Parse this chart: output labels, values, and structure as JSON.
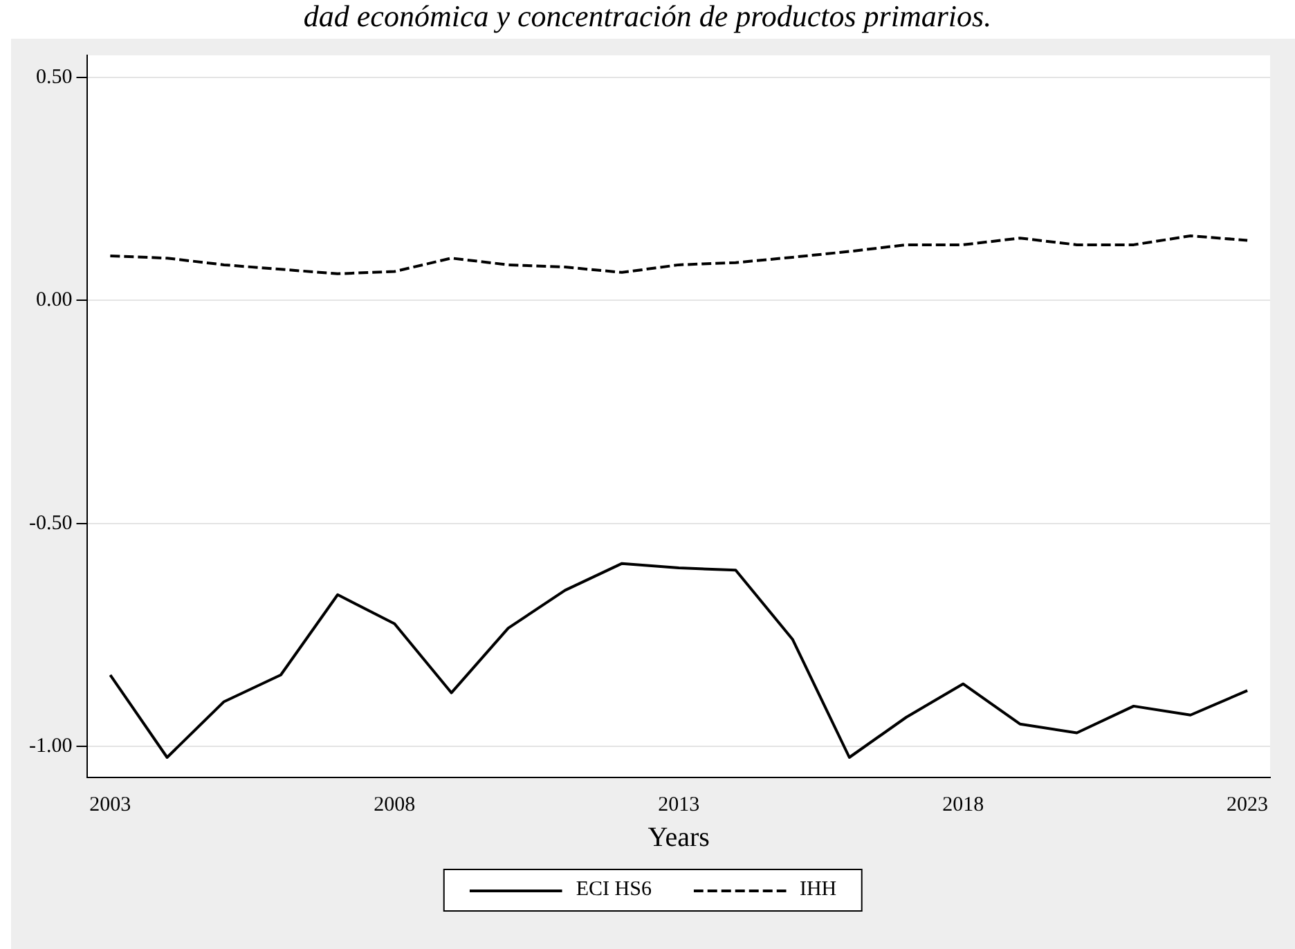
{
  "chart_data": {
    "type": "line",
    "title": "dad económica y concentración de productos primarios.",
    "xlabel": "Years",
    "x": [
      2003,
      2004,
      2005,
      2006,
      2007,
      2008,
      2009,
      2010,
      2011,
      2012,
      2013,
      2014,
      2015,
      2016,
      2017,
      2018,
      2019,
      2020,
      2021,
      2022,
      2023
    ],
    "series": [
      {
        "name": "ECI HS6",
        "color": "#000000",
        "line_style": "solid",
        "values": [
          -0.84,
          -1.025,
          -0.9,
          -0.84,
          -0.66,
          -0.725,
          -0.88,
          -0.735,
          -0.65,
          -0.59,
          -0.6,
          -0.605,
          -0.76,
          -1.025,
          -0.935,
          -0.86,
          -0.95,
          -0.97,
          -0.91,
          -0.93,
          -0.875
        ]
      },
      {
        "name": "IHH",
        "color": "#000000",
        "line_style": "dashed",
        "values": [
          0.1,
          0.095,
          0.08,
          0.07,
          0.06,
          0.065,
          0.095,
          0.08,
          0.075,
          0.063,
          0.08,
          0.085,
          0.097,
          0.11,
          0.125,
          0.125,
          0.14,
          0.125,
          0.125,
          0.145,
          0.135
        ]
      }
    ],
    "xlim": [
      2002.6,
      2023.4
    ],
    "xticks": [
      2003,
      2008,
      2013,
      2018,
      2023
    ],
    "ylim": [
      -1.07,
      0.55
    ],
    "yticks": [
      {
        "value": -1,
        "label": "-1.00"
      },
      {
        "value": -0.5,
        "label": "-0.50"
      },
      {
        "value": 0,
        "label": "0.00"
      },
      {
        "value": 0.5,
        "label": "0.50"
      }
    ],
    "grid": "y",
    "legend": "bottom",
    "marker": "none"
  }
}
